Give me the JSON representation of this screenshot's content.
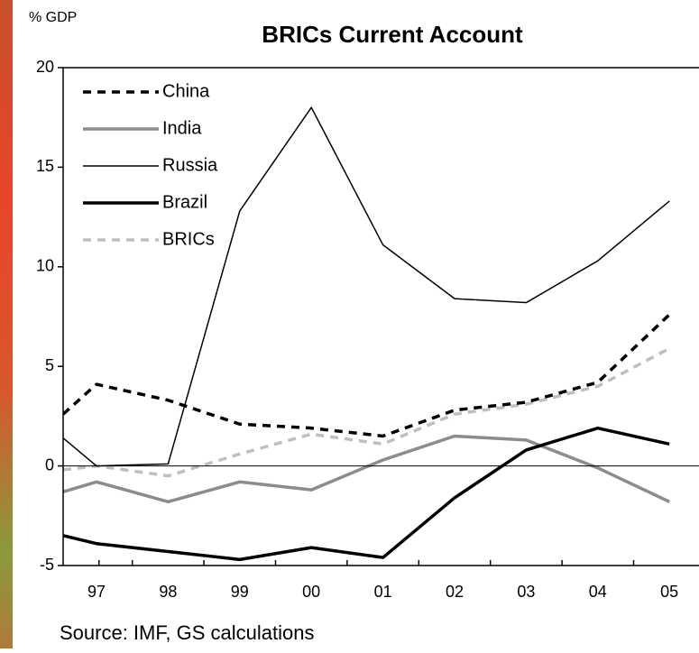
{
  "chart_data": {
    "type": "line",
    "title": "BRICs Current Account",
    "y_label": "% GDP",
    "source": "Source: IMF, GS calculations",
    "categories": [
      null,
      "97",
      "98",
      "99",
      "00",
      "01",
      "02",
      "03",
      "04",
      "05"
    ],
    "series": [
      {
        "name": "China",
        "color": "#000000",
        "values": [
          2.6,
          4.1,
          3.3,
          2.1,
          1.9,
          1.5,
          2.8,
          3.2,
          4.2,
          7.6
        ]
      },
      {
        "name": "India",
        "color": "#8c8c8c",
        "values": [
          -1.3,
          -0.8,
          -1.8,
          -0.8,
          -1.2,
          0.3,
          1.5,
          1.3,
          -0.1,
          -1.8
        ]
      },
      {
        "name": "Russia",
        "color": "#000000",
        "values": [
          1.4,
          0.0,
          0.1,
          12.8,
          18.0,
          11.1,
          8.4,
          8.2,
          10.3,
          13.3
        ]
      },
      {
        "name": "Brazil",
        "color": "#000000",
        "values": [
          -3.5,
          -3.9,
          -4.3,
          -4.7,
          -4.1,
          -4.6,
          -1.6,
          0.8,
          1.9,
          1.1
        ]
      },
      {
        "name": "BRICs",
        "color": "#bfbfbf",
        "values": [
          -0.2,
          0.0,
          -0.5,
          0.6,
          1.6,
          1.1,
          2.6,
          3.1,
          4.0,
          5.9
        ]
      }
    ],
    "ylim": [
      -5,
      20
    ],
    "yticks": [
      -5,
      0,
      5,
      10,
      15,
      20
    ],
    "legend": "upper left"
  }
}
